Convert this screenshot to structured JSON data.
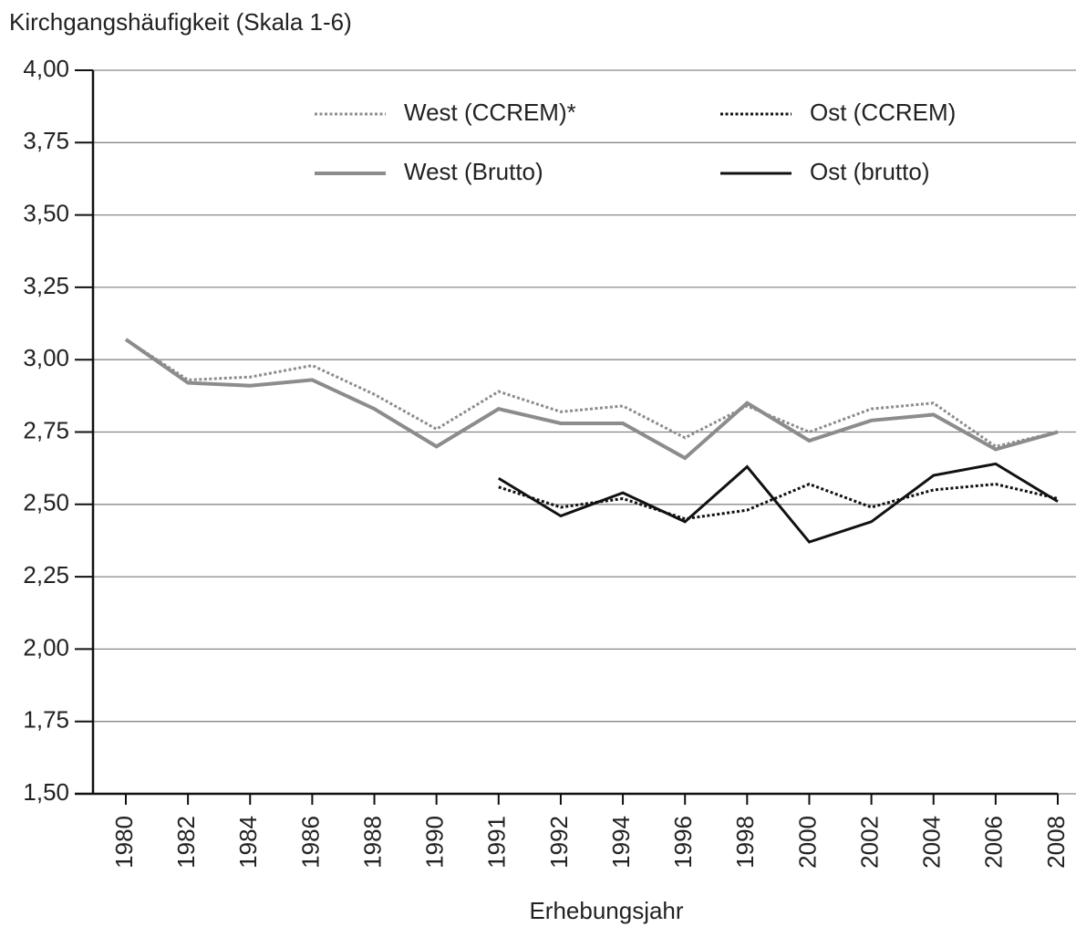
{
  "chart_data": {
    "type": "line",
    "title": "Kirchgangshäufigkeit (Skala 1-6)",
    "x_label": "Erhebungsjahr",
    "categories": [
      "1980",
      "1982",
      "1984",
      "1986",
      "1988",
      "1990",
      "1991",
      "1992",
      "1994",
      "1996",
      "1998",
      "2000",
      "2002",
      "2004",
      "2006",
      "2008"
    ],
    "series": [
      {
        "name": "West (CCREM)*",
        "color": "#8c8c8c",
        "style": "dotted",
        "values": [
          3.07,
          2.93,
          2.94,
          2.98,
          2.88,
          2.76,
          2.89,
          2.82,
          2.84,
          2.73,
          2.84,
          2.75,
          2.83,
          2.85,
          2.7,
          2.75
        ]
      },
      {
        "name": "Ost (CCREM)",
        "color": "#111111",
        "style": "dotted",
        "values": [
          null,
          null,
          null,
          null,
          null,
          null,
          2.56,
          2.49,
          2.52,
          2.45,
          2.48,
          2.57,
          2.49,
          2.55,
          2.57,
          2.52
        ]
      },
      {
        "name": "West (Brutto)",
        "color": "#8c8c8c",
        "style": "solid",
        "values": [
          3.07,
          2.92,
          2.91,
          2.93,
          2.83,
          2.7,
          2.83,
          2.78,
          2.78,
          2.66,
          2.85,
          2.72,
          2.79,
          2.81,
          2.69,
          2.75
        ]
      },
      {
        "name": "Ost (brutto)",
        "color": "#111111",
        "style": "solid",
        "values": [
          null,
          null,
          null,
          null,
          null,
          null,
          2.59,
          2.46,
          2.54,
          2.44,
          2.63,
          2.37,
          2.44,
          2.6,
          2.64,
          2.51
        ]
      }
    ],
    "ylim": [
      1.5,
      4.0
    ],
    "yticks": [
      {
        "value": 1.5,
        "label": "1,50"
      },
      {
        "value": 1.75,
        "label": "1,75"
      },
      {
        "value": 2.0,
        "label": "2,00"
      },
      {
        "value": 2.25,
        "label": "2,25"
      },
      {
        "value": 2.5,
        "label": "2,50"
      },
      {
        "value": 2.75,
        "label": "2,75"
      },
      {
        "value": 3.0,
        "label": "3,00"
      },
      {
        "value": 3.25,
        "label": "3,25"
      },
      {
        "value": 3.5,
        "label": "3,50"
      },
      {
        "value": 3.75,
        "label": "3,75"
      },
      {
        "value": 4.0,
        "label": "4,00"
      }
    ],
    "grid": true
  }
}
